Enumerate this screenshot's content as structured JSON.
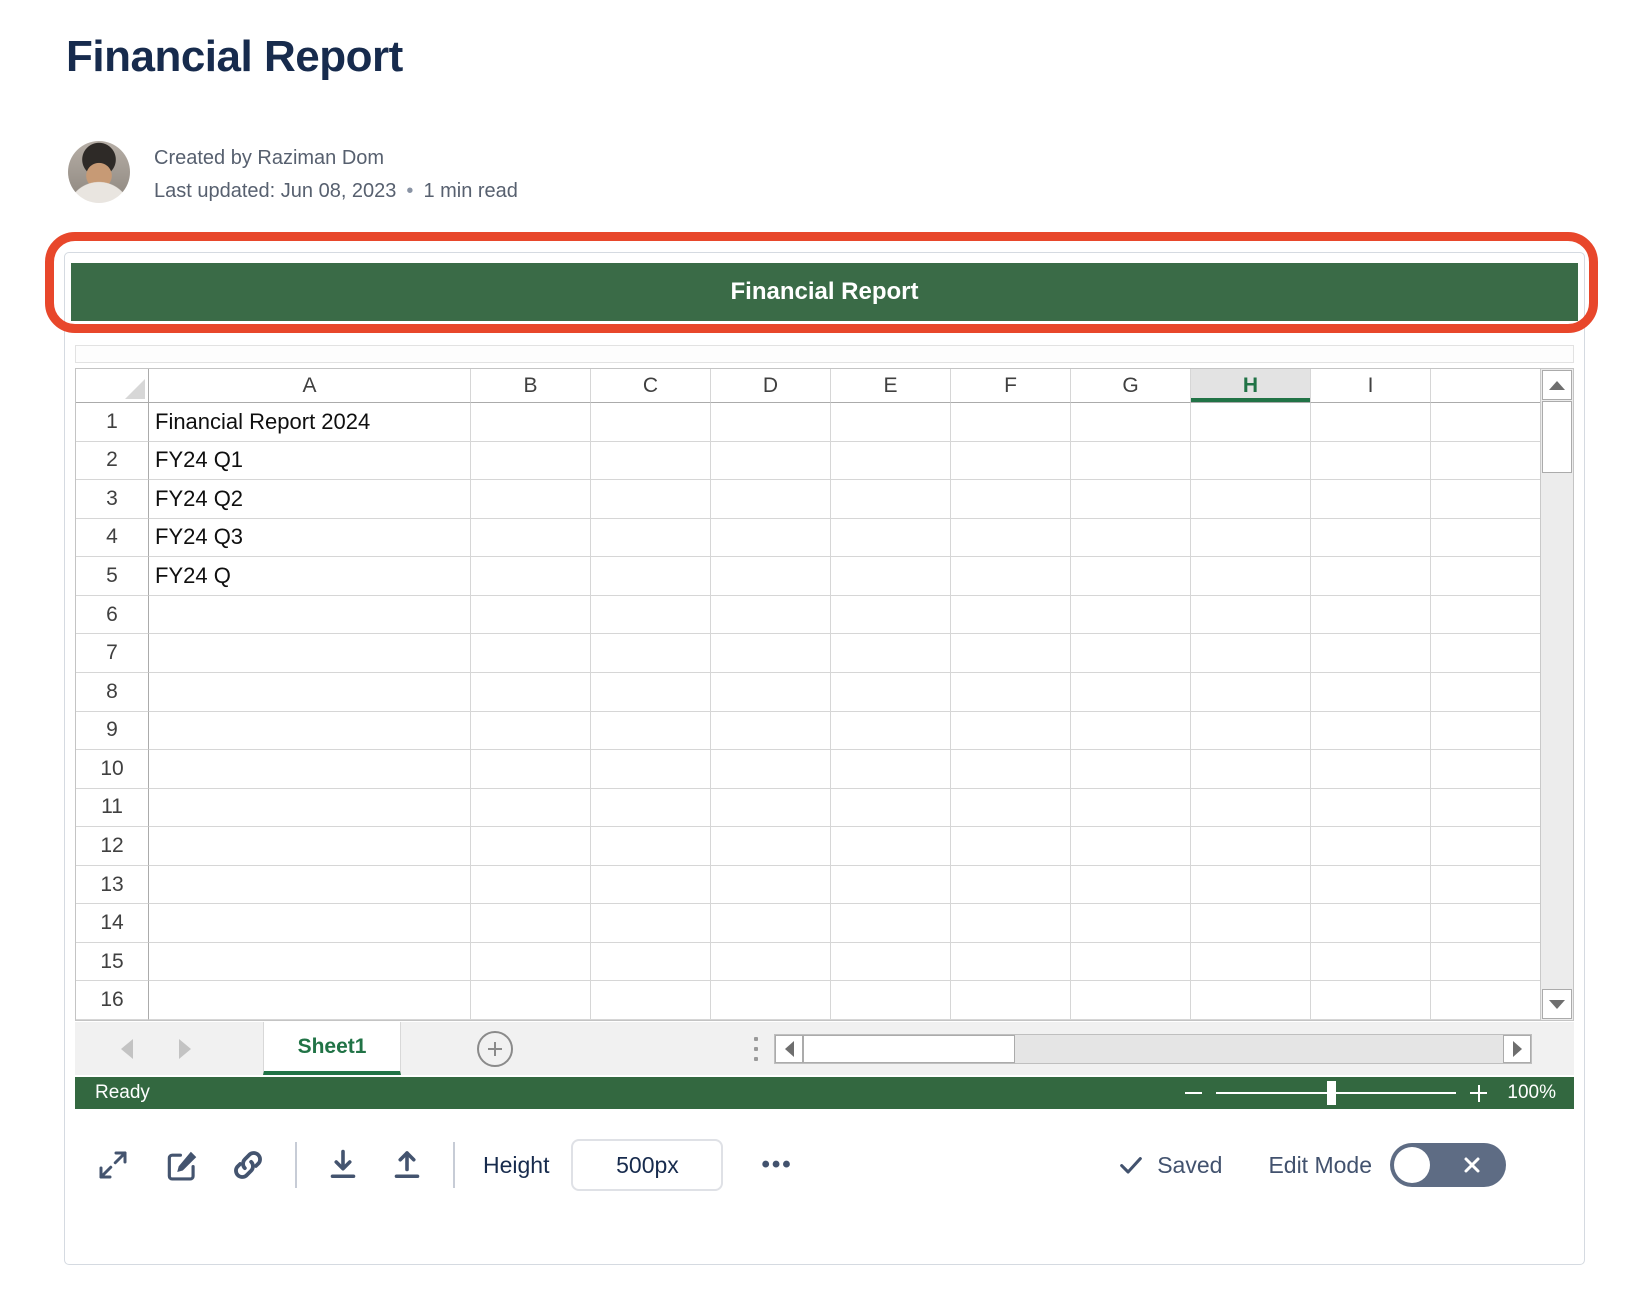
{
  "page": {
    "title": "Financial Report"
  },
  "byline": {
    "created": "Created by Raziman Dom",
    "updated": "Last updated: Jun 08, 2023",
    "dot": "•",
    "read_time": "1 min read"
  },
  "widget": {
    "title_bar": {
      "text": "Financial Report",
      "bg_color": "#3A6B47",
      "annotation_color": "#E8472B"
    },
    "spreadsheet": {
      "columns": [
        "A",
        "B",
        "C",
        "D",
        "E",
        "F",
        "G",
        "H",
        "I"
      ],
      "selected_column": "H",
      "row_count": 16,
      "cells": {
        "A1": "Financial Report 2024",
        "A2": "FY24 Q1",
        "A3": "FY24 Q2",
        "A4": "FY24 Q3",
        "A5": "FY24 Q"
      },
      "accent_green": "#217346"
    },
    "tabs": {
      "sheet_name": "Sheet1",
      "add_sheet_icon": "add-sheet-icon"
    },
    "status_bar": {
      "status": "Ready",
      "zoom_level": "100%",
      "bg_color": "#336840"
    },
    "toolbar": {
      "icons": [
        "expand-icon",
        "edit-icon",
        "link-icon",
        "download-icon",
        "upload-icon",
        "more-options-icon"
      ],
      "height_label": "Height",
      "height_value": "500px",
      "more_label": "•••",
      "saved_label": "Saved",
      "edit_mode_label": "Edit Mode",
      "toggle_color": "#5E6C84"
    }
  }
}
